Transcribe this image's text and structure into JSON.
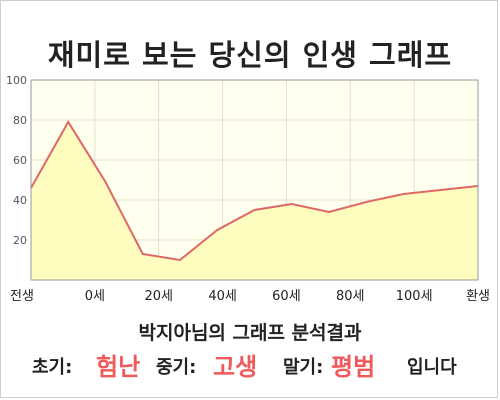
{
  "title": "재미로 보는 당신의 인생 그래프",
  "chart_data": {
    "type": "area",
    "x_labels": [
      "전생",
      "0세",
      "20세",
      "40세",
      "60세",
      "80세",
      "100세",
      "환생"
    ],
    "y_ticks": [
      20,
      40,
      60,
      80,
      100
    ],
    "ylim": [
      0,
      100
    ],
    "points": [
      46,
      79,
      49,
      13,
      10,
      25,
      35,
      38,
      34,
      39,
      43,
      45,
      47
    ],
    "grid": true,
    "fill_color": "#fffcc0",
    "line_color": "#e06767"
  },
  "subtitle": "박지아님의 그래프 분석결과",
  "result": {
    "early_label": "초기:",
    "early_value": "험난",
    "mid_label": "중기:",
    "mid_value": "고생",
    "late_label": "말기:",
    "late_value": "평범",
    "ending": "입니다"
  }
}
